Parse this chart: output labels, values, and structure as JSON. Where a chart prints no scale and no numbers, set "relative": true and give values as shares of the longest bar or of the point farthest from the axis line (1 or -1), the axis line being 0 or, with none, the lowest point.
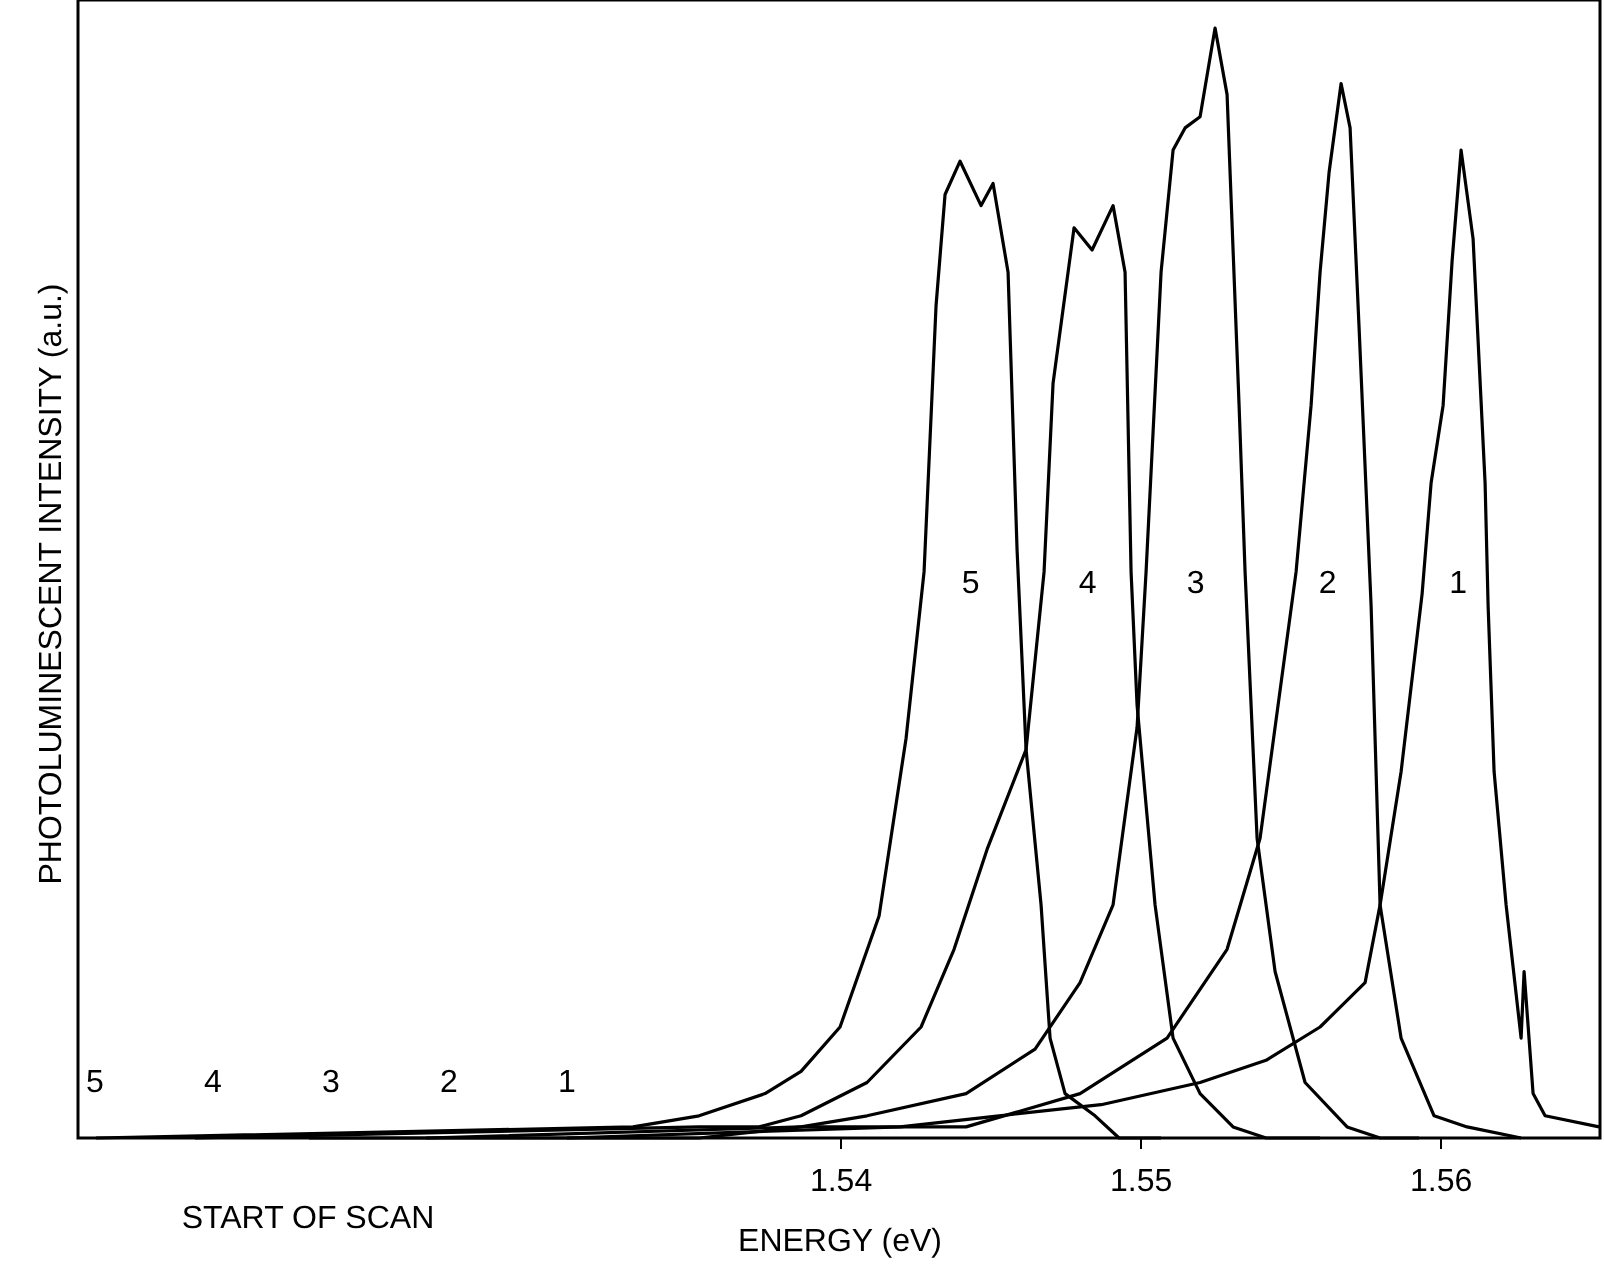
{
  "chart_data": {
    "type": "line",
    "relative": true,
    "xlabel": "ENERGY (eV)",
    "ylabel": "PHOTOLUMINESCENT INTENSITY (a.u.)",
    "xlim": [
      1.5146,
      1.56533
    ],
    "xticks": [
      1.54,
      1.55,
      1.56
    ],
    "grid": false,
    "marker": "none",
    "line_style": "solid",
    "series": [
      {
        "name": "5",
        "color": "#000000",
        "x": [
          1.5152,
          1.5331,
          1.5353,
          1.5375,
          1.5387,
          1.54,
          1.5413,
          1.5422,
          1.5428,
          1.5432,
          1.5435,
          1.544,
          1.5447,
          1.5451,
          1.5456,
          1.5459,
          1.5462,
          1.5467,
          1.547,
          1.5475,
          1.5485,
          1.5493,
          1.5507
        ],
        "values": [
          0,
          0.01,
          0.02,
          0.04,
          0.06,
          0.1,
          0.2,
          0.36,
          0.51,
          0.75,
          0.85,
          0.88,
          0.84,
          0.86,
          0.78,
          0.53,
          0.35,
          0.21,
          0.09,
          0.04,
          0.02,
          0,
          0
        ]
      },
      {
        "name": "4",
        "color": "#000000",
        "x": [
          1.5185,
          1.5353,
          1.5373,
          1.5387,
          1.5409,
          1.5427,
          1.5438,
          1.5449,
          1.5462,
          1.5468,
          1.5471,
          1.5477,
          1.5478,
          1.5484,
          1.5491,
          1.5495,
          1.5497,
          1.5499,
          1.5505,
          1.5511,
          1.552,
          1.5531,
          1.5542,
          1.556
        ],
        "values": [
          0,
          0.01,
          0.01,
          0.02,
          0.05,
          0.1,
          0.17,
          0.26,
          0.35,
          0.51,
          0.68,
          0.8,
          0.82,
          0.8,
          0.84,
          0.78,
          0.51,
          0.39,
          0.21,
          0.09,
          0.04,
          0.01,
          0,
          0
        ]
      },
      {
        "name": "3",
        "color": "#000000",
        "x": [
          1.5223,
          1.5353,
          1.5387,
          1.5409,
          1.5442,
          1.5465,
          1.548,
          1.5491,
          1.5499,
          1.5502,
          1.5507,
          1.5511,
          1.5515,
          1.552,
          1.5525,
          1.5529,
          1.5533,
          1.5535,
          1.5539,
          1.5545,
          1.5555,
          1.5569,
          1.558,
          1.5593
        ],
        "values": [
          0,
          0,
          0.01,
          0.02,
          0.04,
          0.08,
          0.14,
          0.21,
          0.37,
          0.51,
          0.78,
          0.89,
          0.91,
          0.92,
          1,
          0.94,
          0.66,
          0.51,
          0.27,
          0.15,
          0.05,
          0.01,
          0,
          0
        ]
      },
      {
        "name": "2",
        "color": "#000000",
        "x": [
          1.5262,
          1.5387,
          1.5442,
          1.548,
          1.5509,
          1.5529,
          1.554,
          1.5552,
          1.5557,
          1.556,
          1.5563,
          1.5567,
          1.557,
          1.5573,
          1.5577,
          1.558,
          1.5587,
          1.5598,
          1.5609,
          1.5627
        ],
        "values": [
          0,
          0.01,
          0.01,
          0.04,
          0.09,
          0.17,
          0.27,
          0.51,
          0.66,
          0.78,
          0.87,
          0.95,
          0.91,
          0.73,
          0.48,
          0.21,
          0.09,
          0.02,
          0.01,
          0
        ]
      },
      {
        "name": "1",
        "color": "#000000",
        "x": [
          1.5309,
          1.542,
          1.5453,
          1.5487,
          1.552,
          1.5542,
          1.556,
          1.5575,
          1.558,
          1.5587,
          1.5594,
          1.5597,
          1.5601,
          1.5604,
          1.5607,
          1.5611,
          1.5615,
          1.5616,
          1.5618,
          1.5622,
          1.5627,
          1.5628,
          1.5631,
          1.5635,
          1.5653
        ],
        "values": [
          0,
          0.01,
          0.02,
          0.03,
          0.05,
          0.07,
          0.1,
          0.14,
          0.21,
          0.33,
          0.49,
          0.59,
          0.66,
          0.79,
          0.89,
          0.81,
          0.59,
          0.48,
          0.33,
          0.21,
          0.09,
          0.15,
          0.04,
          0.02,
          0.01
        ]
      }
    ],
    "annotations": [
      "5",
      "4",
      "3",
      "2",
      "1",
      "START OF SCAN"
    ]
  }
}
